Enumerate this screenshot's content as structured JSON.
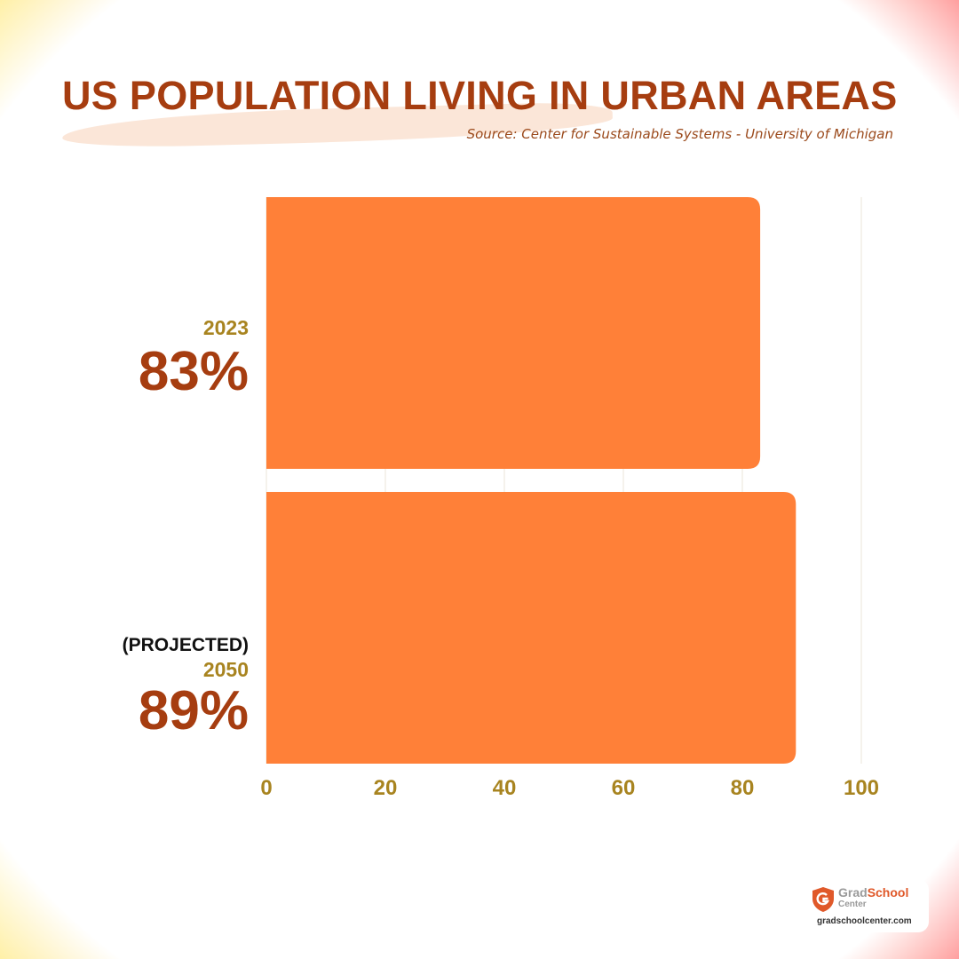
{
  "colors": {
    "bar": "#ff8038",
    "title": "#a63d10",
    "value_label": "#a63d10",
    "year_label": "#a88420",
    "tick_label": "#a88420",
    "grid": "#eeeae0"
  },
  "chart_data": {
    "type": "bar",
    "orientation": "horizontal",
    "title": "US POPULATION LIVING IN URBAN AREAS",
    "subtitle": "Source: Center for Sustainable Systems - University of Michigan",
    "categories": [
      "2023",
      "2050"
    ],
    "category_notes": [
      "",
      "(PROJECTED)"
    ],
    "value_labels": [
      "83%",
      "89%"
    ],
    "values": [
      83,
      89
    ],
    "xlim": [
      0,
      100
    ],
    "xticks": [
      0,
      20,
      40,
      60,
      80,
      100
    ],
    "xtick_labels": [
      "0",
      "20",
      "40",
      "60",
      "80",
      "100"
    ],
    "xlabel": "",
    "ylabel": "",
    "grid": true,
    "legend": "none"
  },
  "logo": {
    "icon": "shield-g-icon",
    "word_main": "Grad",
    "word_accent": "School",
    "word_sub": "Center",
    "url": "gradschoolcenter.com"
  }
}
